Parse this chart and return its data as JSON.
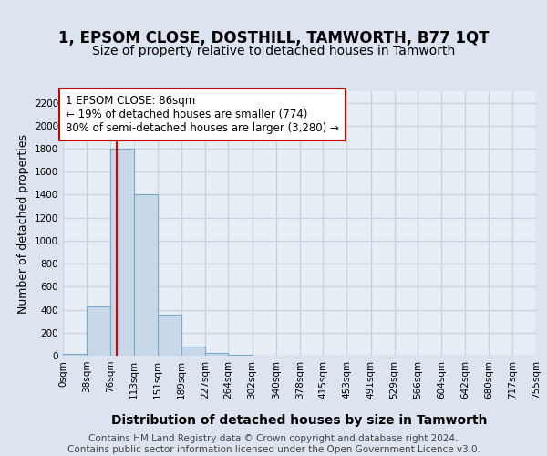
{
  "title": "1, EPSOM CLOSE, DOSTHILL, TAMWORTH, B77 1QT",
  "subtitle": "Size of property relative to detached houses in Tamworth",
  "xlabel": "Distribution of detached houses by size in Tamworth",
  "ylabel": "Number of detached properties",
  "bin_edges": [
    0,
    38,
    76,
    113,
    151,
    189,
    227,
    264,
    302,
    340,
    378,
    415,
    453,
    491,
    529,
    566,
    604,
    642,
    680,
    717,
    755
  ],
  "bar_heights": [
    15,
    430,
    1800,
    1400,
    355,
    80,
    25,
    10,
    3,
    0,
    0,
    0,
    0,
    0,
    0,
    0,
    0,
    0,
    0,
    0
  ],
  "bar_color": "#c8d8e8",
  "bar_edge_color": "#7aaac8",
  "property_size": 86,
  "red_line_color": "#cc0000",
  "annotation_line1": "1 EPSOM CLOSE: 86sqm",
  "annotation_line2": "← 19% of detached houses are smaller (774)",
  "annotation_line3": "80% of semi-detached houses are larger (3,280) →",
  "annotation_box_facecolor": "white",
  "annotation_box_edgecolor": "#cc0000",
  "ylim": [
    0,
    2300
  ],
  "yticks": [
    0,
    200,
    400,
    600,
    800,
    1000,
    1200,
    1400,
    1600,
    1800,
    2000,
    2200
  ],
  "footer_text": "Contains HM Land Registry data © Crown copyright and database right 2024.\nContains public sector information licensed under the Open Government Licence v3.0.",
  "background_color": "#dce5ef",
  "plot_bg_color": "#e8eef5",
  "grid_color": "#c8d4e0",
  "title_fontsize": 12,
  "subtitle_fontsize": 10,
  "ylabel_fontsize": 9,
  "xlabel_fontsize": 10,
  "tick_label_fontsize": 7.5,
  "annotation_fontsize": 8.5,
  "footer_fontsize": 7.5
}
